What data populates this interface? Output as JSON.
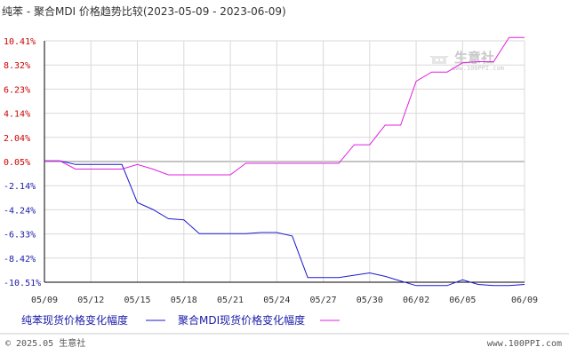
{
  "title": "纯苯 - 聚合MDI 价格趋势比较(2023-05-09 - 2023-06-09)",
  "footer": {
    "left": "© 2025.05 生意社",
    "right": "www.100PPI.com"
  },
  "watermark": {
    "name": "生意社",
    "url": "www.100PPI.com"
  },
  "colors": {
    "positive_tick": "#cc0000",
    "negative_tick": "#1a1aa8",
    "series1": "#1a1ad0",
    "series2": "#e020e0",
    "grid": "#d9d9d9",
    "zero_line": "#888888",
    "axis": "#000000"
  },
  "chart_data": {
    "type": "line",
    "title": "纯苯 - 聚合MDI 价格趋势比较(2023-05-09 - 2023-06-09)",
    "xlabel": "",
    "ylabel": "",
    "grid": true,
    "legend_position": "bottom",
    "ylim": [
      -10.51,
      10.41
    ],
    "y_ticks": [
      "10.41%",
      "8.32%",
      "6.23%",
      "4.14%",
      "2.04%",
      "0.05%",
      "-2.14%",
      "-4.24%",
      "-6.33%",
      "-8.42%",
      "-10.51%"
    ],
    "x_ticks": [
      "05/09",
      "05/12",
      "05/15",
      "05/18",
      "05/21",
      "05/24",
      "05/27",
      "05/30",
      "06/02",
      "06/05",
      "06/09"
    ],
    "x": [
      "05/09",
      "05/10",
      "05/11",
      "05/12",
      "05/13",
      "05/14",
      "05/15",
      "05/16",
      "05/17",
      "05/18",
      "05/19",
      "05/20",
      "05/21",
      "05/22",
      "05/23",
      "05/24",
      "05/25",
      "05/26",
      "05/27",
      "05/28",
      "05/29",
      "05/30",
      "05/31",
      "06/01",
      "06/02",
      "06/03",
      "06/04",
      "06/05",
      "06/06",
      "06/07",
      "06/08",
      "06/09"
    ],
    "series": [
      {
        "name": "纯苯现货价格变化幅度",
        "values": [
          0.0,
          0.0,
          -0.3,
          -0.3,
          -0.3,
          -0.3,
          -3.6,
          -4.2,
          -5.0,
          -5.1,
          -6.3,
          -6.3,
          -6.3,
          -6.3,
          -6.2,
          -6.2,
          -6.5,
          -10.1,
          -10.1,
          -10.1,
          -9.9,
          -9.7,
          -10.0,
          -10.4,
          -10.8,
          -10.8,
          -10.8,
          -10.3,
          -10.7,
          -10.8,
          -10.8,
          -10.7
        ]
      },
      {
        "name": "聚合MDI现货价格变化幅度",
        "values": [
          0.0,
          0.0,
          -0.7,
          -0.7,
          -0.7,
          -0.7,
          -0.3,
          -0.7,
          -1.2,
          -1.2,
          -1.2,
          -1.2,
          -1.2,
          -0.2,
          -0.2,
          -0.2,
          -0.2,
          -0.2,
          -0.2,
          -0.2,
          1.4,
          1.4,
          3.1,
          3.1,
          6.9,
          7.7,
          7.7,
          8.5,
          8.6,
          8.6,
          10.7,
          10.7
        ]
      }
    ]
  }
}
